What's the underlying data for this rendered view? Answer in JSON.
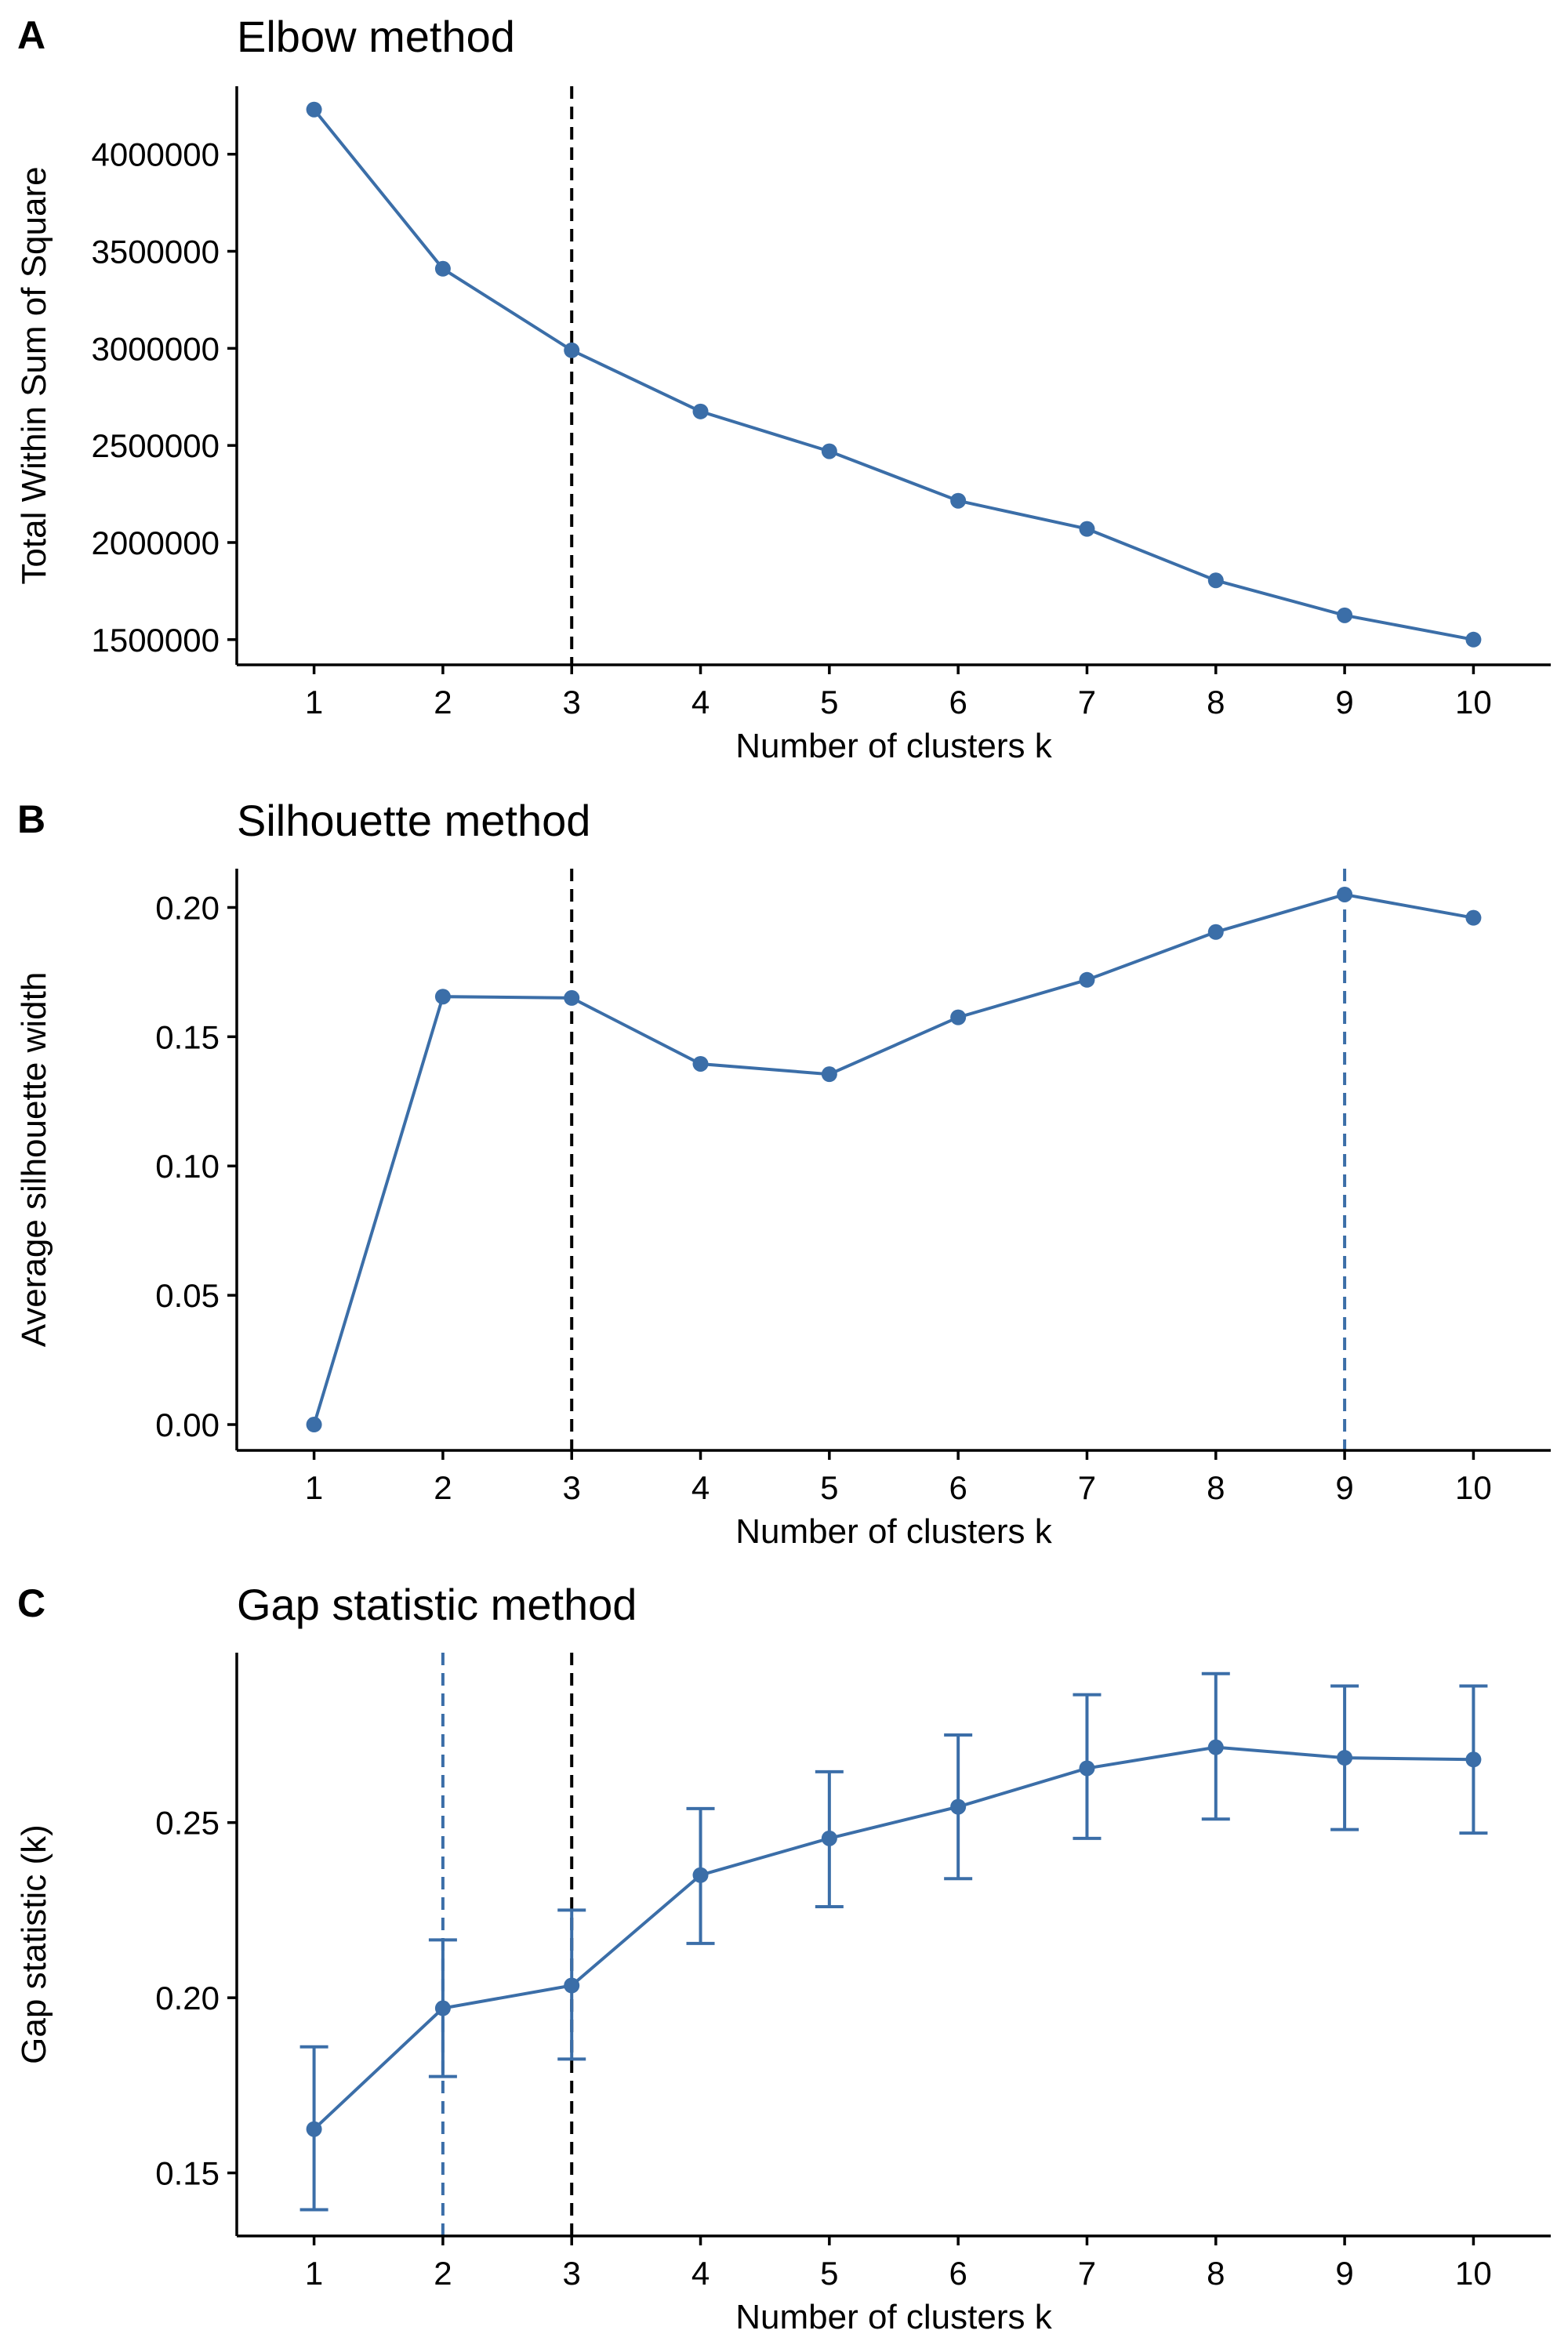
{
  "colors": {
    "series": "#3B6EA8",
    "axis": "#000000",
    "reference_line": "#000000",
    "background": "#ffffff"
  },
  "panels": [
    {
      "tag": "A",
      "title": "Elbow method"
    },
    {
      "tag": "B",
      "title": "Silhouette method"
    },
    {
      "tag": "C",
      "title": "Gap statistic method"
    }
  ],
  "chart_data": [
    {
      "type": "line",
      "title": "Elbow method",
      "xlabel": "Number of clusters k",
      "ylabel": "Total Within Sum of Square",
      "x": [
        1,
        2,
        3,
        4,
        5,
        6,
        7,
        8,
        9,
        10
      ],
      "x_tick_labels": [
        "1",
        "2",
        "3",
        "4",
        "5",
        "6",
        "7",
        "8",
        "9",
        "10"
      ],
      "y": [
        4230000,
        3410000,
        2990000,
        2675000,
        2470000,
        2215000,
        2070000,
        1805000,
        1625000,
        1500000
      ],
      "ylim": [
        1370000,
        4350000
      ],
      "y_ticks": [
        1500000,
        2000000,
        2500000,
        3000000,
        3500000,
        4000000
      ],
      "y_tick_labels": [
        "1500000",
        "2000000",
        "2500000",
        "3000000",
        "3500000",
        "4000000"
      ],
      "markers": true,
      "grid": false,
      "reference_lines": [
        {
          "x": 3,
          "style": "dashed",
          "color": "#000000"
        }
      ]
    },
    {
      "type": "line",
      "title": "Silhouette method",
      "xlabel": "Number of clusters k",
      "ylabel": "Average silhouette width",
      "x": [
        1,
        2,
        3,
        4,
        5,
        6,
        7,
        8,
        9,
        10
      ],
      "x_tick_labels": [
        "1",
        "2",
        "3",
        "4",
        "5",
        "6",
        "7",
        "8",
        "9",
        "10"
      ],
      "y": [
        0.0,
        0.1655,
        0.165,
        0.1395,
        0.1355,
        0.1575,
        0.172,
        0.1905,
        0.205,
        0.196
      ],
      "ylim": [
        -0.01,
        0.215
      ],
      "y_ticks": [
        0.0,
        0.05,
        0.1,
        0.15,
        0.2
      ],
      "y_tick_labels": [
        "0.00",
        "0.05",
        "0.10",
        "0.15",
        "0.20"
      ],
      "markers": true,
      "grid": false,
      "reference_lines": [
        {
          "x": 3,
          "style": "dashed",
          "color": "#000000"
        },
        {
          "x": 9,
          "style": "dashed",
          "color": "#3B6EA8"
        }
      ]
    },
    {
      "type": "line",
      "title": "Gap statistic method",
      "xlabel": "Number of clusters k",
      "ylabel": "Gap statistic (k)",
      "x": [
        1,
        2,
        3,
        4,
        5,
        6,
        7,
        8,
        9,
        10
      ],
      "x_tick_labels": [
        "1",
        "2",
        "3",
        "4",
        "5",
        "6",
        "7",
        "8",
        "9",
        "10"
      ],
      "y": [
        0.1625,
        0.197,
        0.2035,
        0.235,
        0.2455,
        0.2545,
        0.2655,
        0.2715,
        0.2685,
        0.268
      ],
      "error_low": [
        0.1395,
        0.1775,
        0.1825,
        0.2155,
        0.226,
        0.234,
        0.2455,
        0.251,
        0.248,
        0.247
      ],
      "error_high": [
        0.186,
        0.2165,
        0.225,
        0.254,
        0.2645,
        0.275,
        0.2865,
        0.2925,
        0.289,
        0.289
      ],
      "ylim": [
        0.132,
        0.2985
      ],
      "y_ticks": [
        0.15,
        0.2,
        0.25
      ],
      "y_tick_labels": [
        "0.15",
        "0.20",
        "0.25"
      ],
      "markers": true,
      "grid": false,
      "reference_lines": [
        {
          "x": 2,
          "style": "dashed",
          "color": "#3B6EA8"
        },
        {
          "x": 3,
          "style": "dashed",
          "color": "#000000"
        }
      ]
    }
  ]
}
